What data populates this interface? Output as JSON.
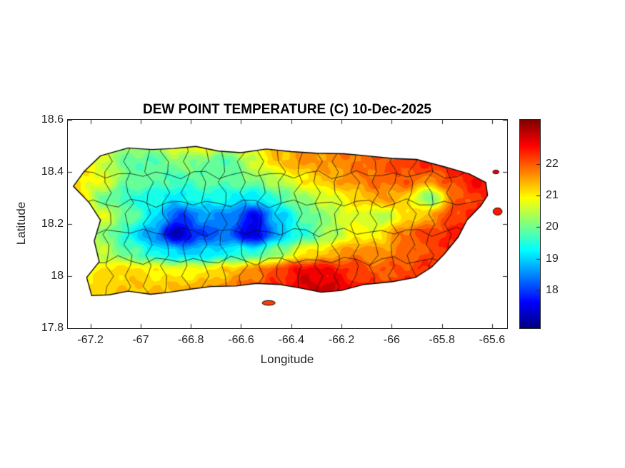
{
  "chart_data": {
    "type": "heatmap",
    "title": "DEW POINT TEMPERATURE (C) 10-Dec-2025",
    "xlabel": "Longitude",
    "ylabel": "Latitude",
    "xlim": [
      -67.29,
      -65.54
    ],
    "ylim": [
      17.8,
      18.6
    ],
    "grid_on": false,
    "xticks": [
      {
        "value": -67.2,
        "label": "-67.2"
      },
      {
        "value": -67.0,
        "label": "-67"
      },
      {
        "value": -66.8,
        "label": "-66.8"
      },
      {
        "value": -66.6,
        "label": "-66.6"
      },
      {
        "value": -66.4,
        "label": "-66.4"
      },
      {
        "value": -66.2,
        "label": "-66.2"
      },
      {
        "value": -66.0,
        "label": "-66"
      },
      {
        "value": -65.8,
        "label": "-65.8"
      },
      {
        "value": -65.6,
        "label": "-65.6"
      }
    ],
    "yticks": [
      {
        "value": 17.8,
        "label": "17.8"
      },
      {
        "value": 18.0,
        "label": "18"
      },
      {
        "value": 18.2,
        "label": "18.2"
      },
      {
        "value": 18.4,
        "label": "18.4"
      },
      {
        "value": 18.6,
        "label": "18.6"
      }
    ],
    "colorbar": {
      "colormap": "jet",
      "min": 16.8,
      "max": 23.4,
      "position": "right",
      "ticks": [
        {
          "value": 18,
          "label": "18"
        },
        {
          "value": 19,
          "label": "19"
        },
        {
          "value": 20,
          "label": "20"
        },
        {
          "value": 21,
          "label": "21"
        },
        {
          "value": 22,
          "label": "22"
        }
      ]
    },
    "contour_step": 0.25,
    "grid": {
      "lon": [
        -67.25,
        -67.15,
        -67.05,
        -66.95,
        -66.85,
        -66.75,
        -66.65,
        -66.55,
        -66.45,
        -66.35,
        -66.25,
        -66.15,
        -66.05,
        -65.95,
        -65.85,
        -65.75,
        -65.65,
        -65.55
      ],
      "lat": [
        17.95,
        18.02,
        18.09,
        18.16,
        18.23,
        18.3,
        18.37,
        18.44,
        18.51
      ],
      "values": [
        [
          21.0,
          21.2,
          21.3,
          21.3,
          21.4,
          21.5,
          21.8,
          22.0,
          22.3,
          22.8,
          22.9,
          22.5,
          22.2,
          22.3,
          22.4,
          22.3,
          22.2,
          22.2
        ],
        [
          21.0,
          21.1,
          21.2,
          21.0,
          20.9,
          21.0,
          21.3,
          21.7,
          22.2,
          22.7,
          22.6,
          22.2,
          22.0,
          22.1,
          22.3,
          22.3,
          22.2,
          22.1
        ],
        [
          20.8,
          20.5,
          19.9,
          19.4,
          19.0,
          19.0,
          19.3,
          19.6,
          20.2,
          21.0,
          21.3,
          21.8,
          21.6,
          21.9,
          22.1,
          22.3,
          22.2,
          22.1
        ],
        [
          21.0,
          20.2,
          19.4,
          18.5,
          17.2,
          18.1,
          18.3,
          17.3,
          18.8,
          19.6,
          20.3,
          20.9,
          21.0,
          21.9,
          22.2,
          22.4,
          22.3,
          22.1
        ],
        [
          21.3,
          20.7,
          20.0,
          19.2,
          18.0,
          18.6,
          18.5,
          17.6,
          18.9,
          19.8,
          20.3,
          20.8,
          20.4,
          21.0,
          21.5,
          22.2,
          22.4,
          22.2
        ],
        [
          21.2,
          20.0,
          19.6,
          19.4,
          19.2,
          19.4,
          19.3,
          19.1,
          19.7,
          20.3,
          20.7,
          21.1,
          21.6,
          21.3,
          20.0,
          21.9,
          22.3,
          22.2
        ],
        [
          21.0,
          20.8,
          20.0,
          19.9,
          19.7,
          19.9,
          19.9,
          20.1,
          20.5,
          21.0,
          21.4,
          21.7,
          21.9,
          22.0,
          21.7,
          22.2,
          22.6,
          22.3
        ],
        [
          21.0,
          20.6,
          19.9,
          19.8,
          20.2,
          20.0,
          19.8,
          20.6,
          21.3,
          21.6,
          21.6,
          21.8,
          22.0,
          22.2,
          22.4,
          22.6,
          22.7,
          22.4
        ],
        [
          21.0,
          20.8,
          20.4,
          20.4,
          20.9,
          21.1,
          20.8,
          21.0,
          21.4,
          21.6,
          21.8,
          22.0,
          22.1,
          22.3,
          22.5,
          22.6,
          22.5,
          22.3
        ]
      ]
    },
    "coastline": [
      [
        -67.16,
        18.462
      ],
      [
        -67.05,
        18.492
      ],
      [
        -66.955,
        18.486
      ],
      [
        -66.87,
        18.49
      ],
      [
        -66.78,
        18.498
      ],
      [
        -66.69,
        18.48
      ],
      [
        -66.6,
        18.474
      ],
      [
        -66.5,
        18.488
      ],
      [
        -66.4,
        18.478
      ],
      [
        -66.3,
        18.472
      ],
      [
        -66.19,
        18.47
      ],
      [
        -66.1,
        18.462
      ],
      [
        -66.0,
        18.452
      ],
      [
        -65.9,
        18.448
      ],
      [
        -65.79,
        18.42
      ],
      [
        -65.69,
        18.392
      ],
      [
        -65.625,
        18.36
      ],
      [
        -65.618,
        18.31
      ],
      [
        -65.645,
        18.27
      ],
      [
        -65.7,
        18.215
      ],
      [
        -65.735,
        18.15
      ],
      [
        -65.79,
        18.085
      ],
      [
        -65.84,
        18.035
      ],
      [
        -65.905,
        17.995
      ],
      [
        -66.0,
        17.978
      ],
      [
        -66.11,
        17.968
      ],
      [
        -66.2,
        17.945
      ],
      [
        -66.28,
        17.938
      ],
      [
        -66.37,
        17.955
      ],
      [
        -66.45,
        17.968
      ],
      [
        -66.54,
        17.972
      ],
      [
        -66.62,
        17.962
      ],
      [
        -66.72,
        17.96
      ],
      [
        -66.8,
        17.95
      ],
      [
        -66.885,
        17.938
      ],
      [
        -66.96,
        17.93
      ],
      [
        -67.05,
        17.942
      ],
      [
        -67.125,
        17.928
      ],
      [
        -67.195,
        17.925
      ],
      [
        -67.215,
        17.995
      ],
      [
        -67.165,
        18.055
      ],
      [
        -67.185,
        18.135
      ],
      [
        -67.16,
        18.215
      ],
      [
        -67.205,
        18.282
      ],
      [
        -67.268,
        18.345
      ],
      [
        -67.225,
        18.402
      ],
      [
        -67.16,
        18.462
      ]
    ],
    "islets": [
      {
        "lon": -66.49,
        "lat": 17.897,
        "rx": 0.026,
        "ry": 0.009,
        "value": 22.1
      },
      {
        "lon": -65.585,
        "lat": 18.4,
        "rx": 0.012,
        "ry": 0.007,
        "value": 22.6
      },
      {
        "lon": -65.578,
        "lat": 18.248,
        "rx": 0.018,
        "ry": 0.014,
        "value": 22.3
      }
    ],
    "boundaries": {
      "vertical_lons": [
        -67.13,
        -67.05,
        -66.97,
        -66.9,
        -66.82,
        -66.745,
        -66.67,
        -66.595,
        -66.52,
        -66.445,
        -66.37,
        -66.295,
        -66.22,
        -66.145,
        -66.07,
        -65.995,
        -65.92,
        -65.845,
        -65.77
      ],
      "horizontal_lats": [
        18.06,
        18.17,
        18.28,
        18.39
      ]
    }
  }
}
